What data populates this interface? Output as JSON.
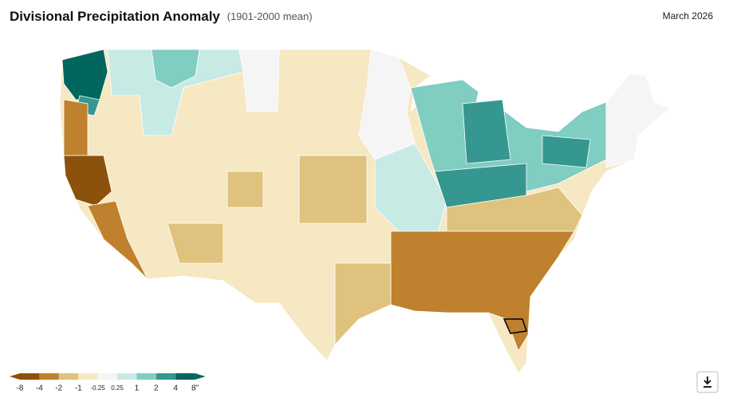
{
  "header": {
    "title": "Divisional Precipitation Anomaly",
    "subtitle": "(1901-2000 mean)",
    "date": "March 2026"
  },
  "legend": {
    "labels": [
      "-8",
      "-4",
      "-2",
      "-1",
      "-0.25",
      "0.25",
      "1",
      "2",
      "4",
      "8\""
    ],
    "colors": [
      "#8c510a",
      "#bf812d",
      "#dfc27d",
      "#f6e8c3",
      "#f5f5f5",
      "#c7eae5",
      "#80cdc1",
      "#35978f",
      "#01665e"
    ]
  }
}
